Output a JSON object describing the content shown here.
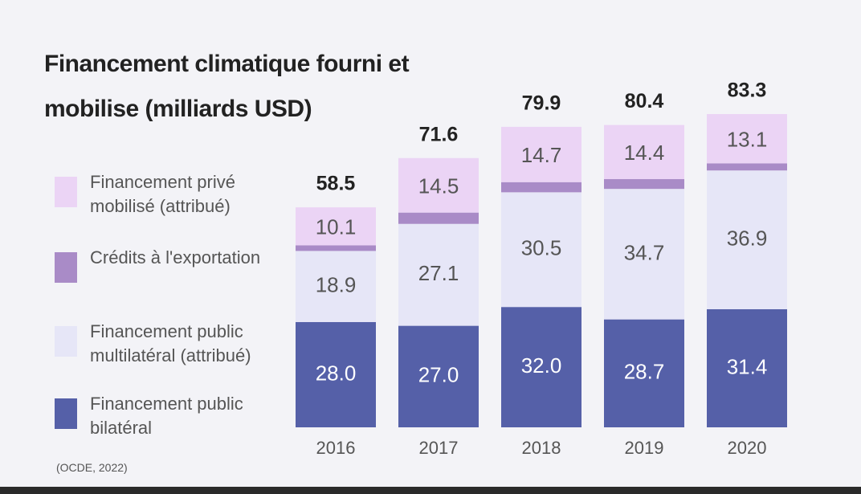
{
  "chart_data": {
    "type": "stacked-bar",
    "title": "Financement climatique fourni et mobilise (milliards USD)",
    "categories": [
      "2016",
      "2017",
      "2018",
      "2019",
      "2020"
    ],
    "series": [
      {
        "name": "Financement public bilatéral",
        "color": "#5560a8",
        "values": [
          28.0,
          27.0,
          32.0,
          28.7,
          31.4
        ],
        "value_labels": [
          "28.0",
          "27.0",
          "32.0",
          "28.7",
          "31.4"
        ]
      },
      {
        "name": "Financement public multilatéral (attribué)",
        "color": "#e6e6f7",
        "values": [
          18.9,
          27.1,
          30.5,
          34.7,
          36.9
        ],
        "value_labels": [
          "18.9",
          "27.1",
          "30.5",
          "34.7",
          "36.9"
        ]
      },
      {
        "name": "Crédits à l'exportation",
        "color": "#a98bc7",
        "values": [
          1.5,
          3.0,
          2.7,
          2.6,
          1.9
        ]
      },
      {
        "name": "Financement privé mobilisé (attribué)",
        "color": "#ebd4f5",
        "values": [
          10.1,
          14.5,
          14.7,
          14.4,
          13.1
        ],
        "value_labels": [
          "10.1",
          "14.5",
          "14.7",
          "14.4",
          "13.1"
        ]
      }
    ],
    "totals": [
      58.5,
      71.6,
      79.9,
      80.4,
      83.3
    ],
    "source": "(OCDE, 2022)"
  }
}
